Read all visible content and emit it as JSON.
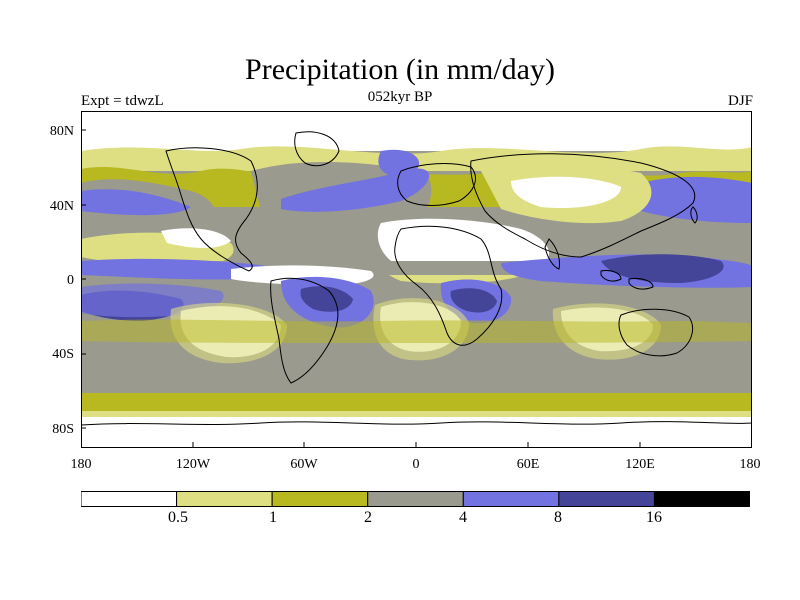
{
  "title": "Precipitation (in mm/day)",
  "experiment_label": "Expt = tdwzL",
  "period_label": "052kyr BP",
  "season_label": "DJF",
  "map": {
    "lat_ticks": [
      "80N",
      "40N",
      "0",
      "40S",
      "80S"
    ],
    "lon_ticks": [
      "180",
      "120W",
      "60W",
      "0",
      "60E",
      "120E",
      "180"
    ],
    "palette": {
      "lt_0.5": "#ffffff",
      "0.5_1": "#dede82",
      "1_2": "#b8b820",
      "2_4": "#9a9a8e",
      "4_8": "#7272e0",
      "8_16": "#444498",
      "gt_16": "#000000"
    }
  },
  "colorbar": {
    "labels": [
      "0.5",
      "1",
      "2",
      "4",
      "8",
      "16"
    ],
    "colors": [
      "#ffffff",
      "#dede82",
      "#b8b820",
      "#9a9a8e",
      "#7272e0",
      "#444498",
      "#000000"
    ]
  }
}
